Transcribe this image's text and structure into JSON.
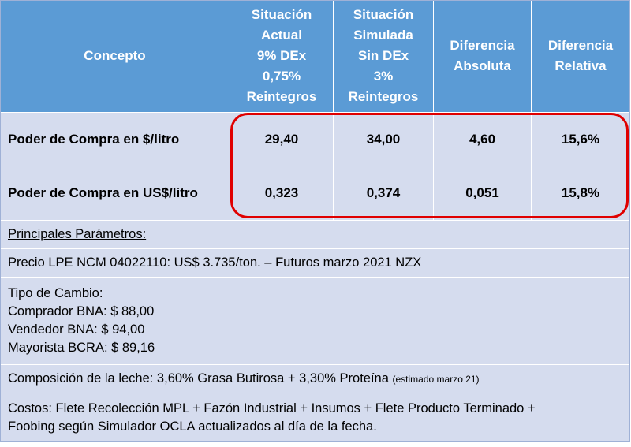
{
  "header": {
    "concepto": "Concepto",
    "col1": [
      "Situación",
      "Actual",
      "9% DEx",
      "0,75%",
      "Reintegros"
    ],
    "col2": [
      "Situación",
      "Simulada",
      "Sin DEx",
      "3%",
      "Reintegros"
    ],
    "col3": [
      "Diferencia",
      "Absoluta"
    ],
    "col4": [
      "Diferencia",
      "Relativa"
    ]
  },
  "rows": [
    {
      "label": "Poder de Compra en $/litro",
      "actual": "29,40",
      "simulada": "34,00",
      "abs": "4,60",
      "rel": "15,6%"
    },
    {
      "label": "Poder de Compra en US$/litro",
      "actual": "0,323",
      "simulada": "0,374",
      "abs": "0,051",
      "rel": "15,8%"
    }
  ],
  "params": {
    "title": "Principales Parámetros:",
    "precio": "Precio LPE NCM 04022110:  US$ 3.735/ton. – Futuros marzo  2021 NZX",
    "tipo_cambio": [
      "Tipo de Cambio:",
      "Comprador BNA: $ 88,00",
      "Vendedor BNA: $ 94,00",
      "Mayorista BCRA: $ 89,16"
    ],
    "composicion": "Composición de la leche: 3,60% Grasa Butirosa + 3,30% Proteína",
    "composicion_note": "(estimado marzo 21)",
    "costos": [
      "Costos: Flete Recolección MPL + Fazón Industrial + Insumos + Flete Producto Terminado +",
      "Foobing según Simulador OCLA actualizados al día de la fecha."
    ]
  },
  "colors": {
    "header_bg": "#5b9bd5",
    "row_bg": "#d5dcee",
    "highlight": "#e00000"
  }
}
